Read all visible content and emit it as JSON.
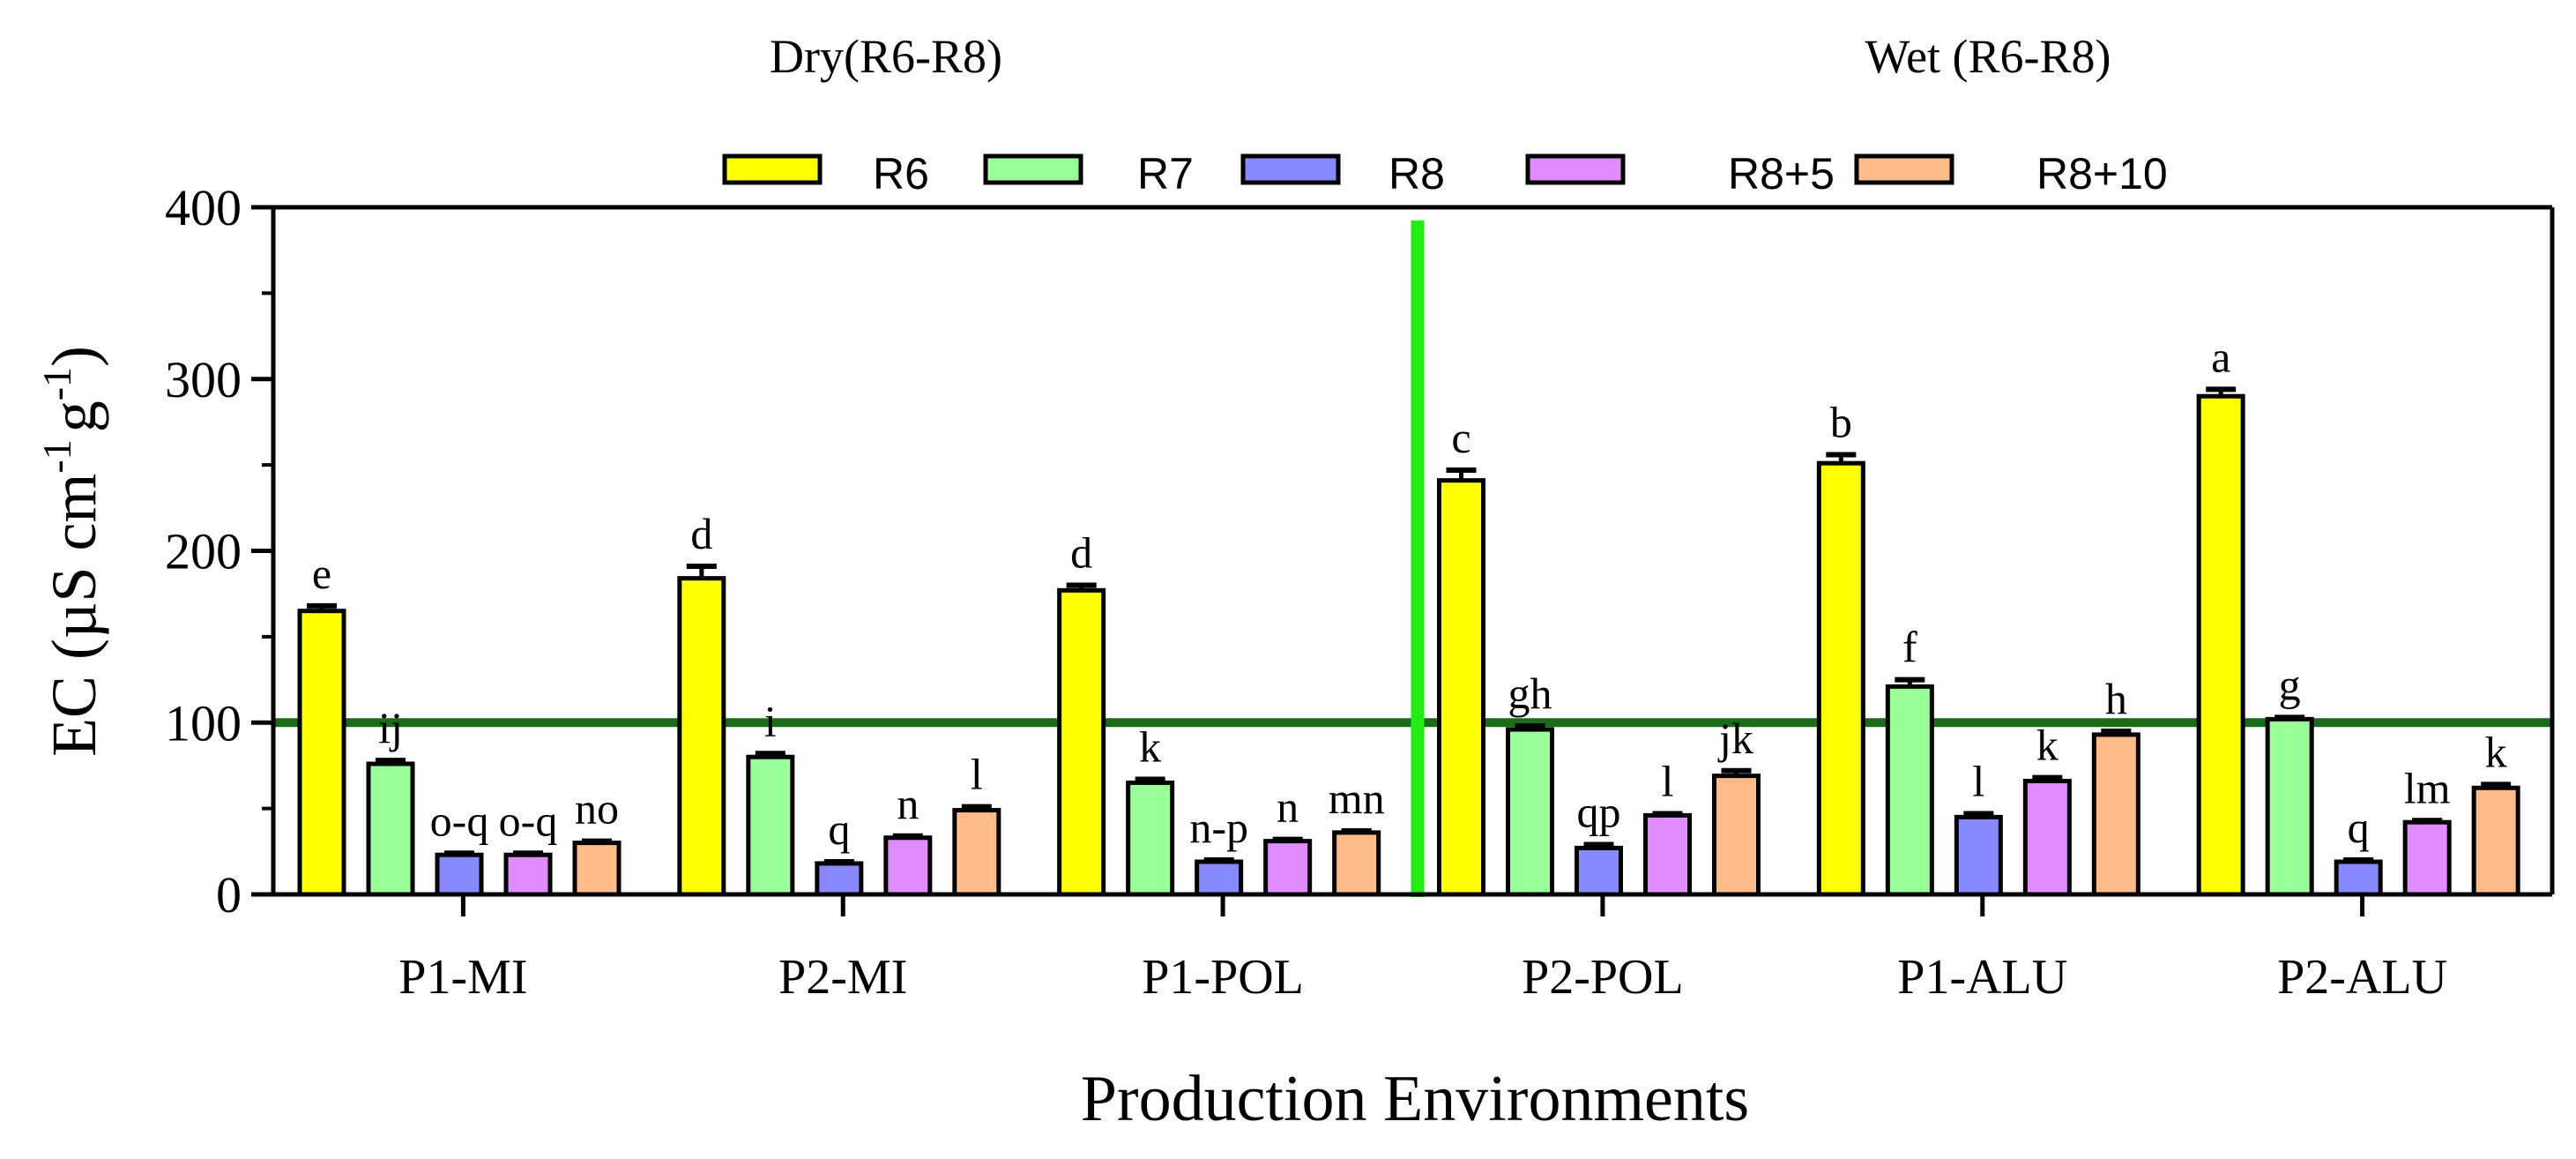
{
  "chart_data": {
    "type": "bar",
    "xlabel": "Production Environments",
    "ylabel_main": "EC (µS cm",
    "ylabel_sup1": "-1",
    "ylabel_mid": "g",
    "ylabel_sup2": "-1",
    "ylabel_end": ")",
    "ylim": [
      0,
      400
    ],
    "yticks": [
      0,
      100,
      200,
      300,
      400
    ],
    "ytick_labels": [
      "0",
      "100",
      "200",
      "300",
      "400"
    ],
    "reference_line": 100,
    "group_titles": [
      "Dry(R6-R8)",
      "Wet (R6-R8)"
    ],
    "categories": [
      "P1-MI",
      "P2-MI",
      "P1-POL",
      "P2-POL",
      "P1-ALU",
      "P2-ALU"
    ],
    "series": [
      {
        "name": "R6",
        "color": "#ffff00",
        "values": [
          165,
          184,
          177,
          241,
          251,
          290
        ],
        "errors": [
          3,
          7,
          3,
          6,
          5,
          4
        ],
        "letters": [
          "e",
          "d",
          "d",
          "c",
          "b",
          "a"
        ]
      },
      {
        "name": "R7",
        "color": "#99ff99",
        "values": [
          76,
          80,
          65,
          96,
          121,
          102
        ],
        "errors": [
          2,
          2,
          2,
          2,
          4,
          1
        ],
        "letters": [
          "ij",
          "i",
          "k",
          "gh",
          "f",
          "g"
        ]
      },
      {
        "name": "R8",
        "color": "#8888ff",
        "values": [
          23,
          18,
          19,
          27,
          45,
          19
        ],
        "errors": [
          1,
          1,
          1,
          2,
          2,
          1
        ],
        "letters": [
          "o-q",
          "q",
          "n-p",
          "qp",
          "l",
          "q"
        ]
      },
      {
        "name": "R8+5",
        "color": "#e08cff",
        "values": [
          23,
          33,
          31,
          46,
          66,
          42
        ],
        "errors": [
          1,
          1,
          1,
          1,
          2,
          1
        ],
        "letters": [
          "o-q",
          "n",
          "n",
          "l",
          "k",
          "lm"
        ]
      },
      {
        "name": "R8+10",
        "color": "#ffbb88",
        "values": [
          30,
          49,
          36,
          69,
          93,
          62
        ],
        "errors": [
          1,
          2,
          1,
          3,
          2,
          2
        ],
        "letters": [
          "no",
          "l",
          "mn",
          "jk",
          "h",
          "k"
        ]
      }
    ],
    "colors": {
      "reference_line": "#1a6b1a",
      "divider": "#22ee11",
      "axis": "#000000"
    }
  }
}
